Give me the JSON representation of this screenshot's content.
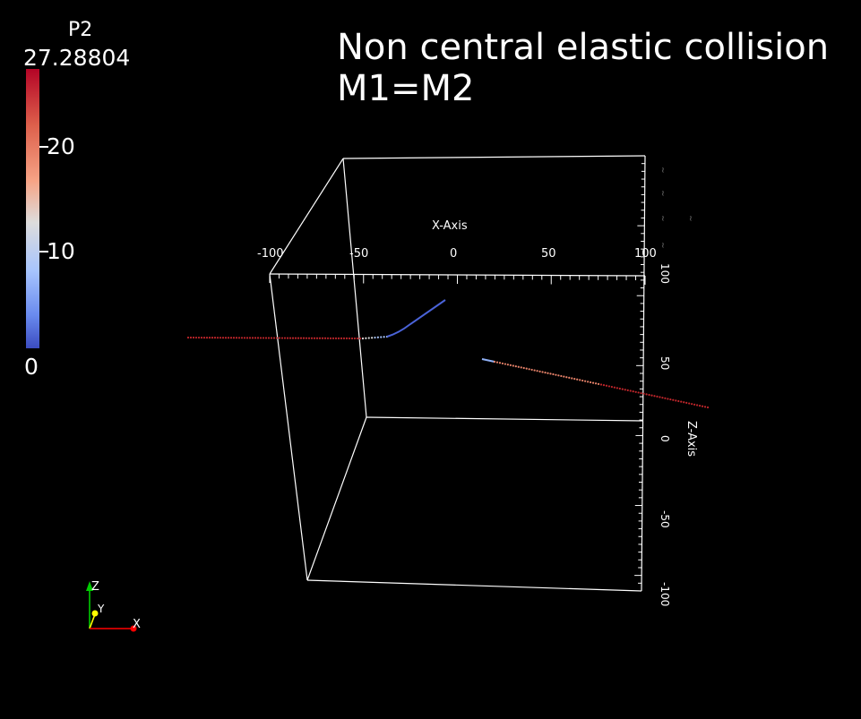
{
  "title": {
    "line1": "Non central elastic collision",
    "line2": "M1=M2"
  },
  "colorbar": {
    "array_name": "P2",
    "max_label": "27.28804",
    "labels": [
      "20",
      "10",
      "0"
    ],
    "colormap": [
      "#b40426",
      "#dd5f4b",
      "#f6a385",
      "#dddcdc",
      "#a8c5fd",
      "#6a8bef",
      "#3b4cc0"
    ]
  },
  "axes": {
    "x_title": "X-Axis",
    "x_ticks": [
      "-100",
      "-50",
      "0",
      "50",
      "100"
    ],
    "z_title": "Z-Axis",
    "z_ticks": [
      "100",
      "50",
      "0",
      "-50",
      "-100"
    ]
  },
  "orientation": {
    "z_label": "Z",
    "y_label": "Y",
    "x_label": "X",
    "z_color": "#00cc00",
    "y_color": "#ffff00",
    "x_color": "#ff0000"
  },
  "colors": {
    "background": "#000000",
    "box_lines": "#ffffff",
    "trail_high": "#c0262b",
    "trail_low": "#4a63d8"
  }
}
